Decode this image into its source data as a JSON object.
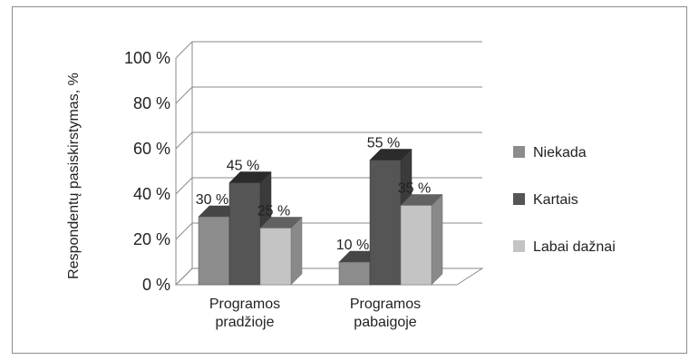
{
  "chart_data": {
    "type": "bar",
    "title": "",
    "xlabel": "",
    "ylabel": "Respondentų pasiskirstymas, %",
    "ylim": [
      0,
      100
    ],
    "yticks": [
      "0 %",
      "20 %",
      "40 %",
      "60 %",
      "80 %",
      "100 %"
    ],
    "categories": [
      "Programos pradžioje",
      "Programos pabaigoje"
    ],
    "category_lines": [
      [
        "Programos",
        "pradžioje"
      ],
      [
        "Programos",
        "pabaigoje"
      ]
    ],
    "series": [
      {
        "name": "Niekada",
        "values": [
          30,
          10
        ],
        "labels": [
          "30 %",
          "10 %"
        ],
        "color": "#8c8c8c"
      },
      {
        "name": "Kartais",
        "values": [
          45,
          55
        ],
        "labels": [
          "45 %",
          "55 %"
        ],
        "color": "#555555"
      },
      {
        "name": "Labai dažnai",
        "values": [
          25,
          35
        ],
        "labels": [
          "25 %",
          "35 %"
        ],
        "color": "#c4c4c4"
      }
    ],
    "legend_position": "right",
    "grid": true,
    "style": "3d-clustered-column"
  }
}
